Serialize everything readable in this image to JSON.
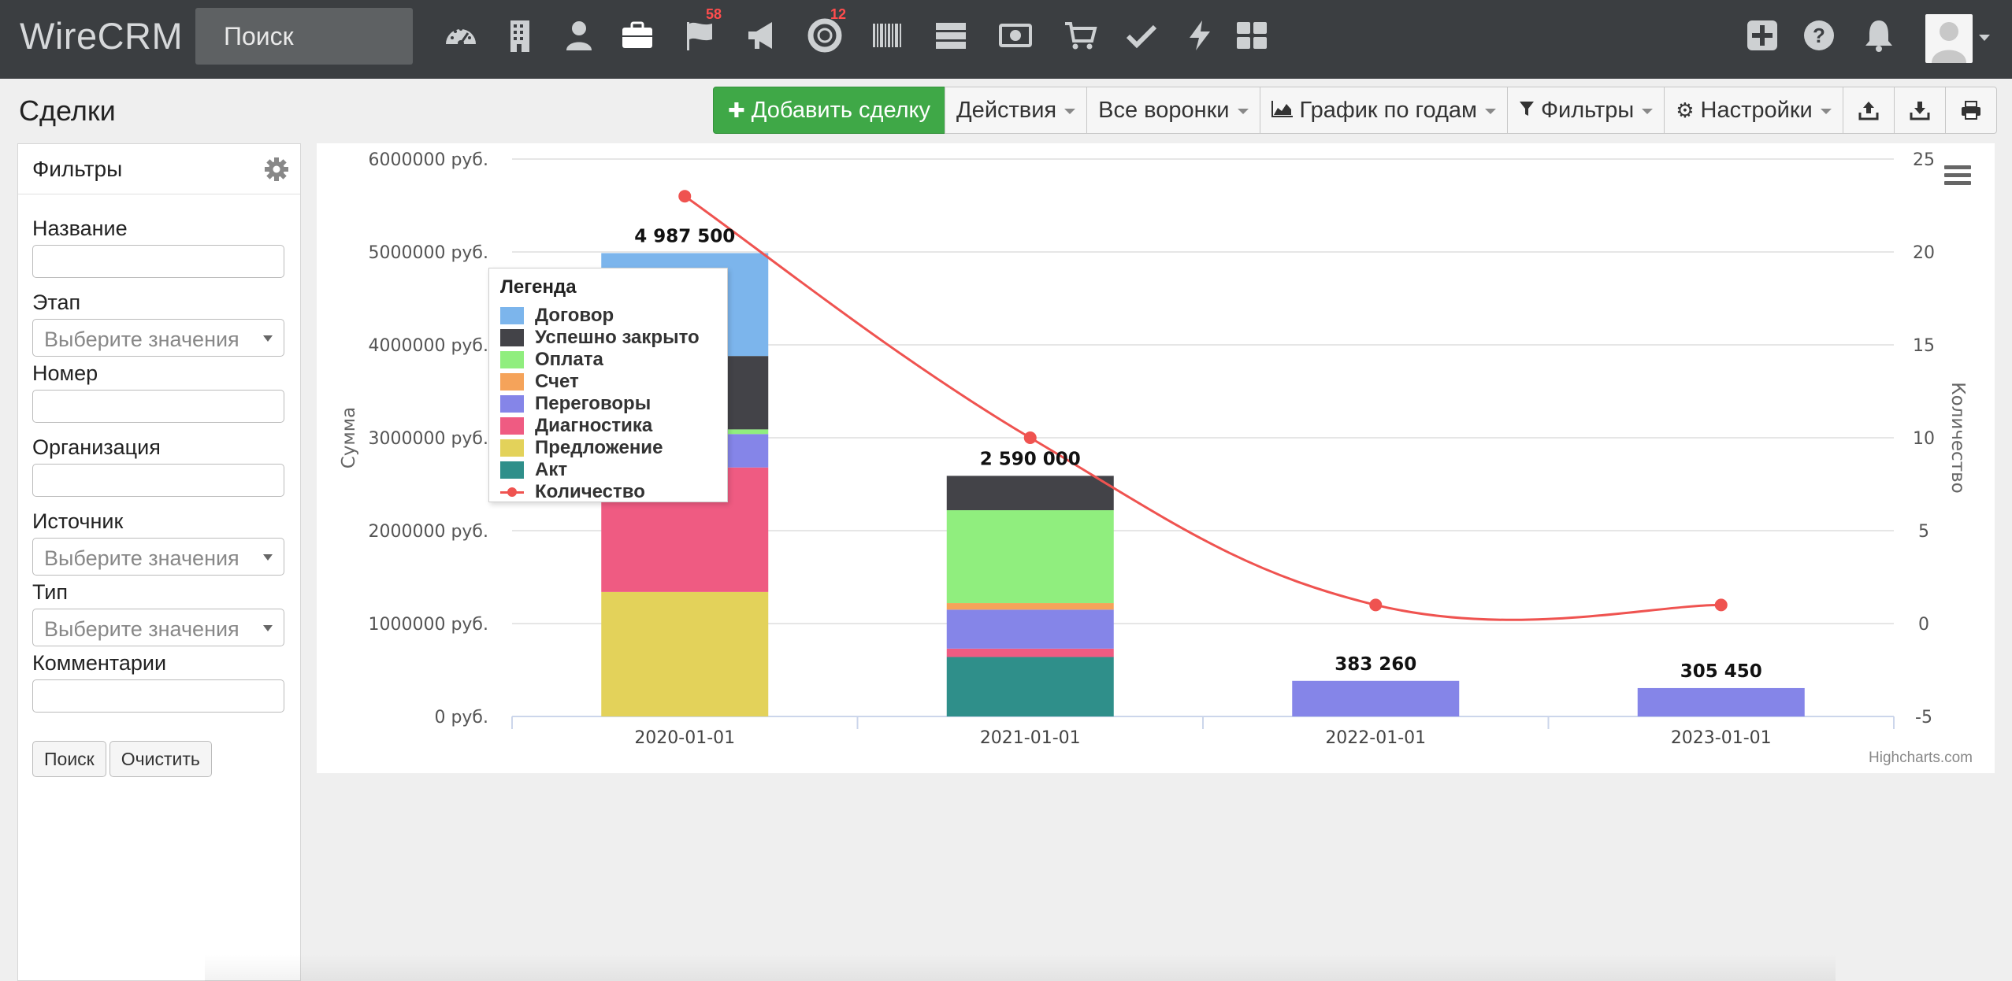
{
  "app": {
    "logo": "WireCRM",
    "search_placeholder": "Поиск"
  },
  "nav": [
    {
      "name": "dashboard-icon",
      "badge": ""
    },
    {
      "name": "building-icon",
      "badge": ""
    },
    {
      "name": "user-icon",
      "badge": ""
    },
    {
      "name": "briefcase-icon",
      "badge": ""
    },
    {
      "name": "flag-icon",
      "badge": "58"
    },
    {
      "name": "megaphone-icon",
      "badge": ""
    },
    {
      "name": "lifebuoy-icon",
      "badge": "12"
    },
    {
      "name": "barcode-icon",
      "badge": ""
    },
    {
      "name": "server-icon",
      "badge": ""
    },
    {
      "name": "money-icon",
      "badge": ""
    },
    {
      "name": "cart-icon",
      "badge": ""
    },
    {
      "name": "check-icon",
      "badge": ""
    },
    {
      "name": "bolt-icon",
      "badge": ""
    },
    {
      "name": "grid-icon",
      "badge": ""
    }
  ],
  "page": {
    "title": "Сделки"
  },
  "toolbar": {
    "add_deal": "Добавить сделку",
    "actions": "Действия",
    "funnels": "Все воронки",
    "chart_by_years": "График по годам",
    "filters": "Фильтры",
    "settings": "Настройки"
  },
  "sidebar": {
    "title": "Фильтры",
    "fields": [
      {
        "label": "Название",
        "type": "input",
        "value": ""
      },
      {
        "label": "Этап",
        "type": "select",
        "placeholder": "Выберите значения"
      },
      {
        "label": "Номер",
        "type": "input",
        "value": ""
      },
      {
        "label": "Организация",
        "type": "input",
        "value": ""
      },
      {
        "label": "Источник",
        "type": "select",
        "placeholder": "Выберите значения"
      },
      {
        "label": "Тип",
        "type": "select",
        "placeholder": "Выберите значения"
      },
      {
        "label": "Комментарии",
        "type": "input",
        "value": ""
      }
    ],
    "search_button": "Поиск",
    "clear_button": "Очистить"
  },
  "chart_data": {
    "type": "bar",
    "stacked": true,
    "categories": [
      "2020-01-01",
      "2021-01-01",
      "2022-01-01",
      "2023-01-01"
    ],
    "ylabel": "Сумма",
    "y2label": "Количество",
    "ylim": [
      0,
      6000000
    ],
    "y2lim": [
      -5,
      25
    ],
    "y_ticks": [
      "0 руб.",
      "1000000 руб.",
      "2000000 руб.",
      "3000000 руб.",
      "4000000 руб.",
      "5000000 руб.",
      "6000000 руб."
    ],
    "y2_ticks": [
      "-5",
      "0",
      "5",
      "10",
      "15",
      "20",
      "25"
    ],
    "totals": [
      "4 987 500",
      "2 590 000",
      "383 260",
      "305 450"
    ],
    "grid": true,
    "legend_title": "Легенда",
    "legend_position": "top-left",
    "credits": "Highcharts.com",
    "series": [
      {
        "name": "Акт",
        "color": "#2f8f8a",
        "values": [
          0,
          640000,
          0,
          0
        ]
      },
      {
        "name": "Предложение",
        "color": "#e3d25a",
        "values": [
          1340000,
          0,
          0,
          0
        ]
      },
      {
        "name": "Диагностика",
        "color": "#ef5b82",
        "values": [
          1340000,
          90000,
          0,
          0
        ]
      },
      {
        "name": "Переговоры",
        "color": "#8585e8",
        "values": [
          360000,
          420000,
          383260,
          305450
        ]
      },
      {
        "name": "Счет",
        "color": "#f5a35a",
        "values": [
          0,
          70000,
          0,
          0
        ]
      },
      {
        "name": "Оплата",
        "color": "#90ee7e",
        "values": [
          50000,
          1000000,
          0,
          0
        ]
      },
      {
        "name": "Успешно закрыто",
        "color": "#434348",
        "values": [
          790000,
          370000,
          0,
          0
        ]
      },
      {
        "name": "Договор",
        "color": "#7cb5ec",
        "values": [
          1107500,
          0,
          0,
          0
        ]
      }
    ],
    "line_series": {
      "name": "Количество",
      "color": "#ef5350",
      "values": [
        23,
        10,
        1,
        1
      ]
    }
  }
}
